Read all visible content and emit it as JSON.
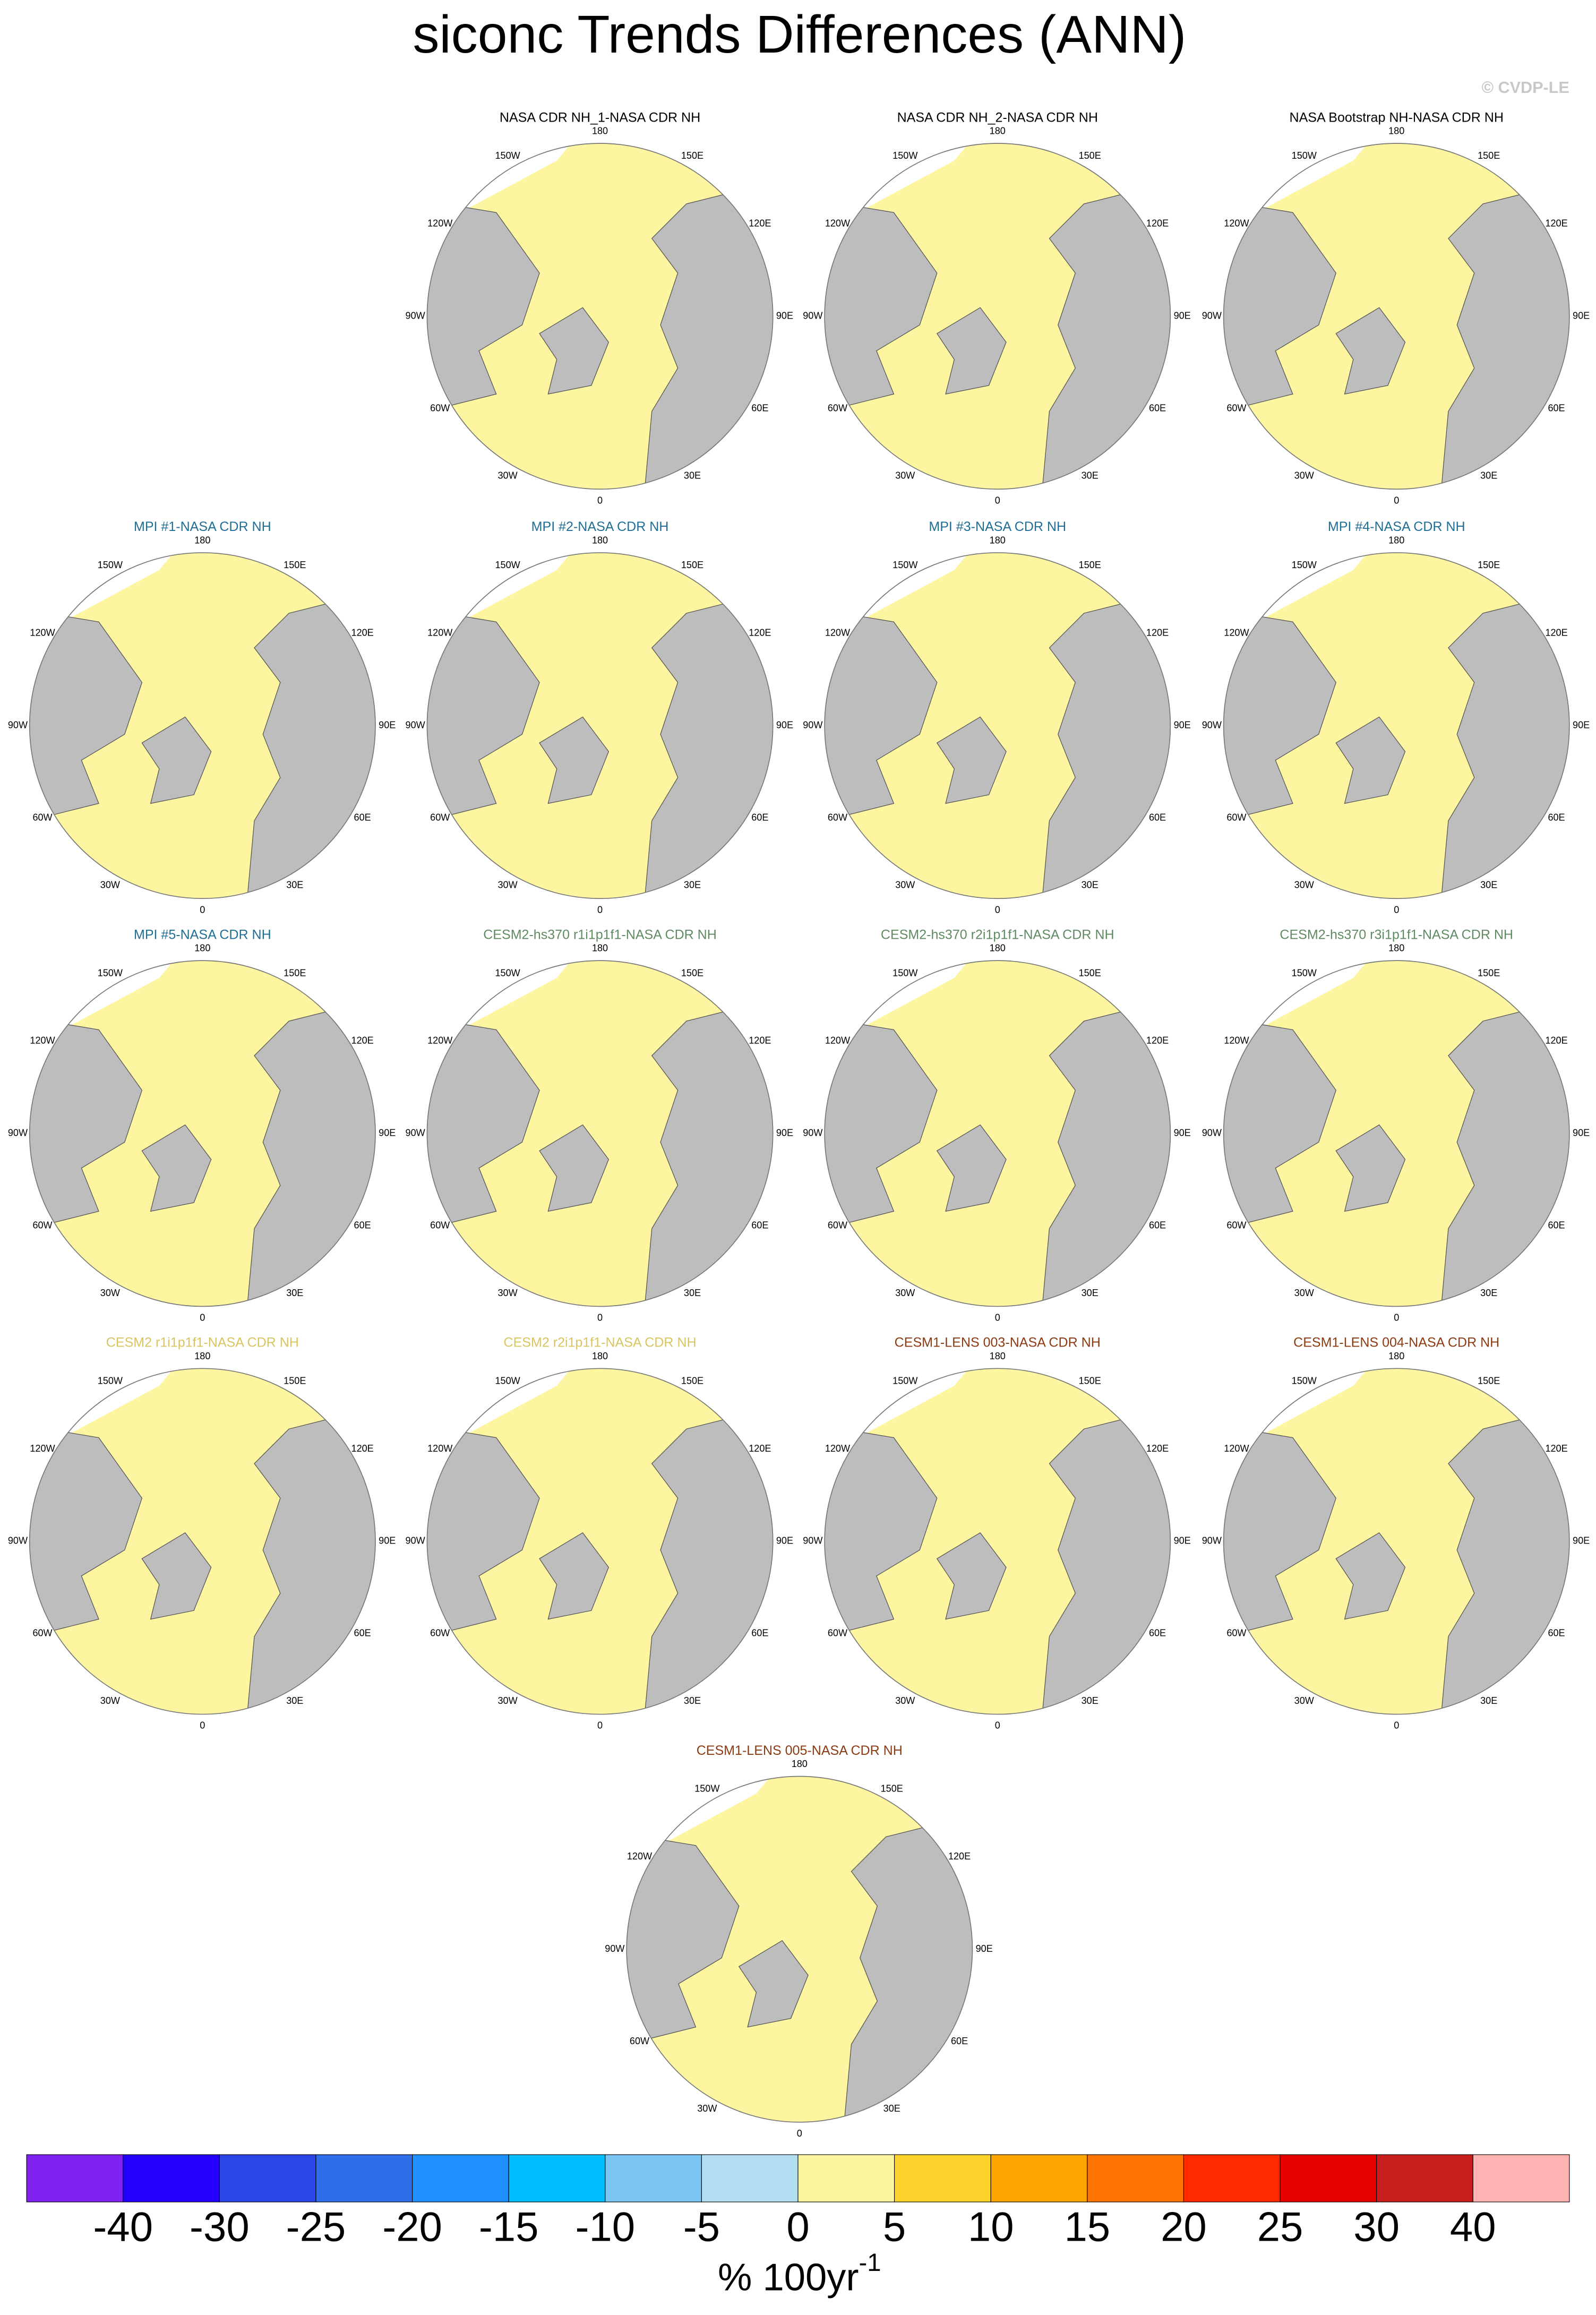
{
  "title": "siconc Trends Differences (ANN)",
  "watermark": "© CVDP-LE",
  "lon_labels": [
    "180",
    "150E",
    "120E",
    "90E",
    "60E",
    "30E",
    "0",
    "30W",
    "60W",
    "90W",
    "120W",
    "150W"
  ],
  "panels": [
    {
      "title": "NASA CDR NH_1-NASA CDR NH",
      "color": "#000000"
    },
    {
      "title": "NASA CDR NH_2-NASA CDR NH",
      "color": "#000000"
    },
    {
      "title": "NASA Bootstrap NH-NASA CDR NH",
      "color": "#000000"
    },
    {
      "title": "MPI #1-NASA CDR NH",
      "color": "#1f6e96"
    },
    {
      "title": "MPI #2-NASA CDR NH",
      "color": "#1f6e96"
    },
    {
      "title": "MPI #3-NASA CDR NH",
      "color": "#1f6e96"
    },
    {
      "title": "MPI #4-NASA CDR NH",
      "color": "#1f6e96"
    },
    {
      "title": "MPI #5-NASA CDR NH",
      "color": "#1f6e96"
    },
    {
      "title": "CESM2-hs370 r1i1p1f1-NASA CDR NH",
      "color": "#5f8a62"
    },
    {
      "title": "CESM2-hs370 r2i1p1f1-NASA CDR NH",
      "color": "#5f8a62"
    },
    {
      "title": "CESM2-hs370 r3i1p1f1-NASA CDR NH",
      "color": "#5f8a62"
    },
    {
      "title": "CESM2 r1i1p1f1-NASA CDR NH",
      "color": "#d9c560"
    },
    {
      "title": "CESM2 r2i1p1f1-NASA CDR NH",
      "color": "#d9c560"
    },
    {
      "title": "CESM1-LENS 003-NASA CDR NH",
      "color": "#8b3a12"
    },
    {
      "title": "CESM1-LENS 004-NASA CDR NH",
      "color": "#8b3a12"
    },
    {
      "title": "CESM1-LENS 005-NASA CDR NH",
      "color": "#8b3a12"
    }
  ],
  "colorbar": {
    "colors": [
      "#7f22f0",
      "#2400ff",
      "#2a45e8",
      "#2f6ee9",
      "#1e90ff",
      "#00bfff",
      "#7ac5f2",
      "#b3ddf0",
      "#fdf5a0",
      "#fcd32a",
      "#ffa500",
      "#ff7300",
      "#ff2a00",
      "#e60000",
      "#c81e1e",
      "#ffb3b3"
    ],
    "ticks": [
      -40,
      -30,
      -25,
      -20,
      -15,
      -10,
      -5,
      0,
      5,
      10,
      15,
      20,
      25,
      30,
      40
    ],
    "unit": "% 100yr",
    "unit_exponent": "-1"
  }
}
